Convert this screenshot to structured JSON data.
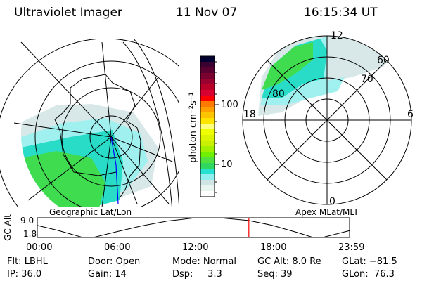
{
  "header": {
    "instrument": "Ultraviolet Imager",
    "date": "11 Nov 07",
    "time": "16:15:34 UT"
  },
  "left_map": {
    "label": "Geographic Lat/Lon"
  },
  "right_map": {
    "label": "Apex MLat/MLT",
    "mlt_labels": {
      "top": "12",
      "left": "18",
      "right": "6",
      "bottom": "0"
    },
    "lat_labels": [
      "60",
      "70",
      "80"
    ]
  },
  "colorbar": {
    "label": "photon cm⁻²s⁻¹",
    "tick_labels": [
      "100",
      "10"
    ],
    "colors": [
      "#000030",
      "#3a0030",
      "#5a0030",
      "#7a0030",
      "#9a0030",
      "#b80028",
      "#d80030",
      "#ff0000",
      "#ff7a00",
      "#ffa000",
      "#ffc400",
      "#ffe400",
      "#ffff80",
      "#f0ff00",
      "#dcf400",
      "#c8f000",
      "#a0f000",
      "#70f000",
      "#50e040",
      "#30d860",
      "#28e0d0",
      "#90f0f0",
      "#d0e4e4",
      "#e8f4f0",
      "#ffffff"
    ]
  },
  "colors": {
    "aurora_green": "#40dc50",
    "aurora_teal": "#28dcc8",
    "aurora_cyan": "#a0f0f0",
    "aurora_gray": "#d8e8e8",
    "time_marker": "#ff0000",
    "track": "#0000ff"
  },
  "chart_data": {
    "type": "line",
    "title": "",
    "ylabel": "GC Alt",
    "y_tick_labels": [
      "9.0",
      "1.8"
    ],
    "ylim": [
      1.8,
      9.0
    ],
    "x_tick_labels": [
      "00:00",
      "06:00",
      "12:00",
      "18:00",
      "23:59"
    ],
    "xlim_hours": [
      0,
      24
    ],
    "series": [
      {
        "name": "GC Alt (Re)",
        "x": [
          0,
          1.5,
          3.5,
          4.3,
          6,
          8,
          10,
          12,
          14,
          16.25,
          18,
          20,
          21.2,
          22,
          24
        ],
        "y": [
          6.2,
          4.5,
          1.8,
          1.8,
          3.8,
          6.0,
          7.8,
          8.9,
          9.0,
          8.0,
          6.3,
          3.6,
          1.8,
          1.9,
          4.3
        ]
      }
    ],
    "current_time_hours": 16.26
  },
  "status": {
    "row1": [
      "Flt: LBHL",
      "Door: Open",
      "Mode: Normal",
      "GC Alt: 8.0 Re",
      "GLat: −81.5"
    ],
    "row2": [
      "IP: 36.0",
      "Gain: 14",
      "Dsp:     3.3",
      "Seq: 39",
      "GLon:  76.3"
    ]
  }
}
